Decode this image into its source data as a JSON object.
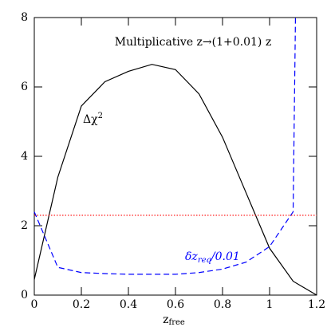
{
  "chart_data": {
    "type": "line",
    "title": "Multiplicative z→(1+0.01) z",
    "xlabel": [
      "z",
      "free"
    ],
    "xlim": [
      0,
      1.2
    ],
    "xticks": [
      0,
      0.2,
      0.4,
      0.6,
      0.8,
      1,
      1.2
    ],
    "ylim": [
      0,
      8
    ],
    "yticks": [
      0,
      2,
      4,
      6,
      8
    ],
    "series": [
      {
        "label": [
          "Δχ",
          "2"
        ],
        "color": "#000000",
        "dash": "solid",
        "x": [
          0,
          0.1,
          0.2,
          0.3,
          0.4,
          0.5,
          0.6,
          0.7,
          0.8,
          0.9,
          1.0,
          1.1,
          1.2
        ],
        "values": [
          0.45,
          3.4,
          5.45,
          6.15,
          6.45,
          6.65,
          6.5,
          5.8,
          4.55,
          2.95,
          1.35,
          0.4,
          0
        ]
      },
      {
        "label": [
          "δz",
          "req",
          "/0.01"
        ],
        "color": "#0000ff",
        "dash": "dashed",
        "x": [
          0,
          0.1,
          0.2,
          0.3,
          0.4,
          0.5,
          0.6,
          0.7,
          0.8,
          0.9,
          1.0,
          1.1,
          1.11
        ],
        "values": [
          2.4,
          0.8,
          0.65,
          0.62,
          0.6,
          0.6,
          0.6,
          0.65,
          0.75,
          0.95,
          1.4,
          2.4,
          8
        ]
      },
      {
        "color": "#ff0000",
        "dash": "dotted",
        "x": [
          0,
          1.2
        ],
        "values": [
          2.3,
          2.3
        ]
      }
    ]
  }
}
